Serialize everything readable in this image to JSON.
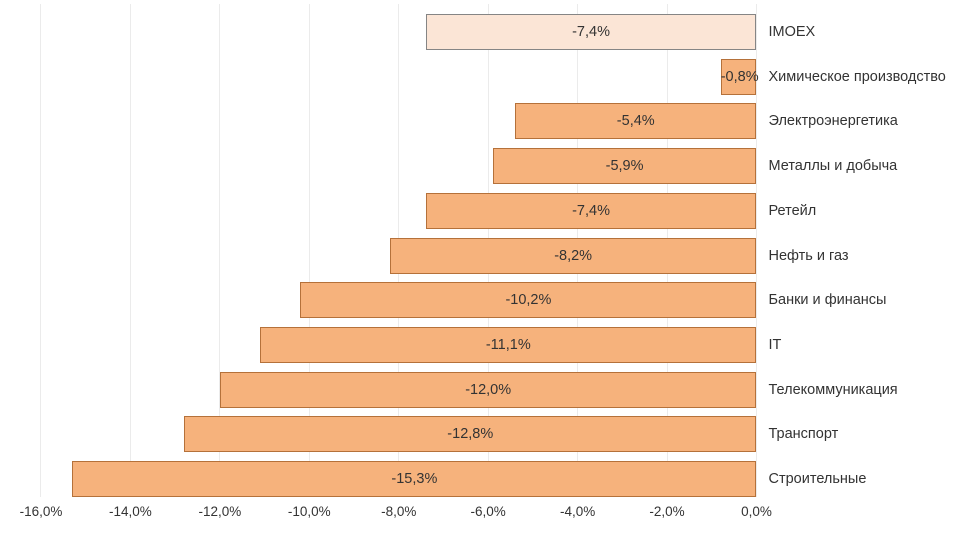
{
  "chart_data": {
    "type": "bar",
    "orientation": "horizontal",
    "title": "",
    "xlabel": "",
    "ylabel": "",
    "xlim": [
      -16,
      0
    ],
    "grid": true,
    "legend": false,
    "categories": [
      "IMOEX",
      "Химическое производство",
      "Электроэнергетика",
      "Металлы и добыча",
      "Ретейл",
      "Нефть и газ",
      "Банки и финансы",
      "IT",
      "Телекоммуникация",
      "Транспорт",
      "Строительные"
    ],
    "values": [
      -7.4,
      -0.8,
      -5.4,
      -5.9,
      -7.4,
      -8.2,
      -10.2,
      -11.1,
      -12.0,
      -12.8,
      -15.3
    ],
    "value_labels": [
      "-7,4%",
      "-0,8%",
      "-5,4%",
      "-5,9%",
      "-7,4%",
      "-8,2%",
      "-10,2%",
      "-11,1%",
      "-12,0%",
      "-12,8%",
      "-15,3%"
    ],
    "x_ticks": [
      -16,
      -14,
      -12,
      -10,
      -8,
      -6,
      -4,
      -2,
      0
    ],
    "x_tick_labels": [
      "-16,0%",
      "-14,0%",
      "-12,0%",
      "-10,0%",
      "-8,0%",
      "-6,0%",
      "-4,0%",
      "-2,0%",
      "0,0%"
    ],
    "highlight_index": 0,
    "colors": {
      "bar_fill": "#F6B27C",
      "bar_border": "#B5713A",
      "highlight_fill": "#FBE5D6",
      "highlight_border": "#858585",
      "gridline": "#EBEBEB",
      "text": "#333333"
    }
  }
}
